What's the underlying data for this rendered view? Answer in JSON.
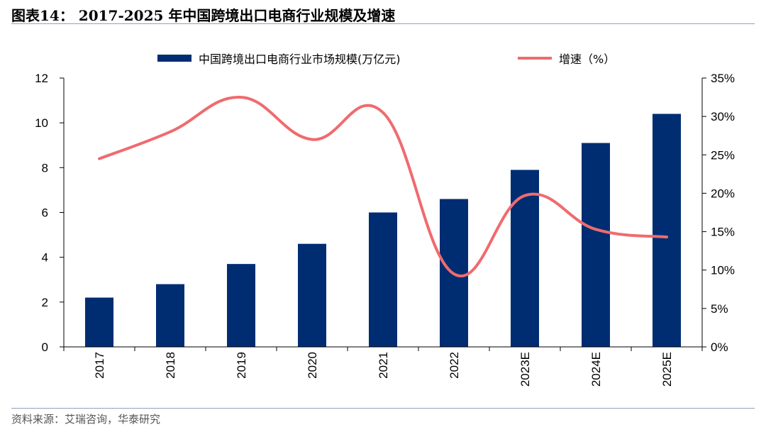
{
  "figure": {
    "title": "图表14： 2017-2025 年中国跨境出口电商行业规模及增速",
    "source": "资料来源：艾瑞咨询，华泰研究"
  },
  "chart_data": {
    "type": "bar",
    "categories": [
      "2017",
      "2018",
      "2019",
      "2020",
      "2021",
      "2022",
      "2023E",
      "2024E",
      "2025E"
    ],
    "series": [
      {
        "name": "中国跨境出口电商行业市场规模(万亿元)",
        "type": "bar",
        "axis": "left",
        "color": "#002d72",
        "values": [
          2.2,
          2.8,
          3.7,
          4.6,
          6.0,
          6.6,
          7.9,
          9.1,
          10.4
        ]
      },
      {
        "name": "增速（%）",
        "type": "line",
        "axis": "right",
        "color": "#ef6b6e",
        "values": [
          24.5,
          28.0,
          32.5,
          27.0,
          30.5,
          9.5,
          19.7,
          15.3,
          14.3
        ]
      }
    ],
    "y_left": {
      "lim": [
        0,
        12
      ],
      "ticks": [
        "0",
        "2",
        "4",
        "6",
        "8",
        "10",
        "12"
      ]
    },
    "y_right": {
      "lim": [
        0,
        35
      ],
      "ticks": [
        "0%",
        "5%",
        "10%",
        "15%",
        "20%",
        "25%",
        "30%",
        "35%"
      ]
    },
    "legend": "top-center",
    "grid": false
  }
}
